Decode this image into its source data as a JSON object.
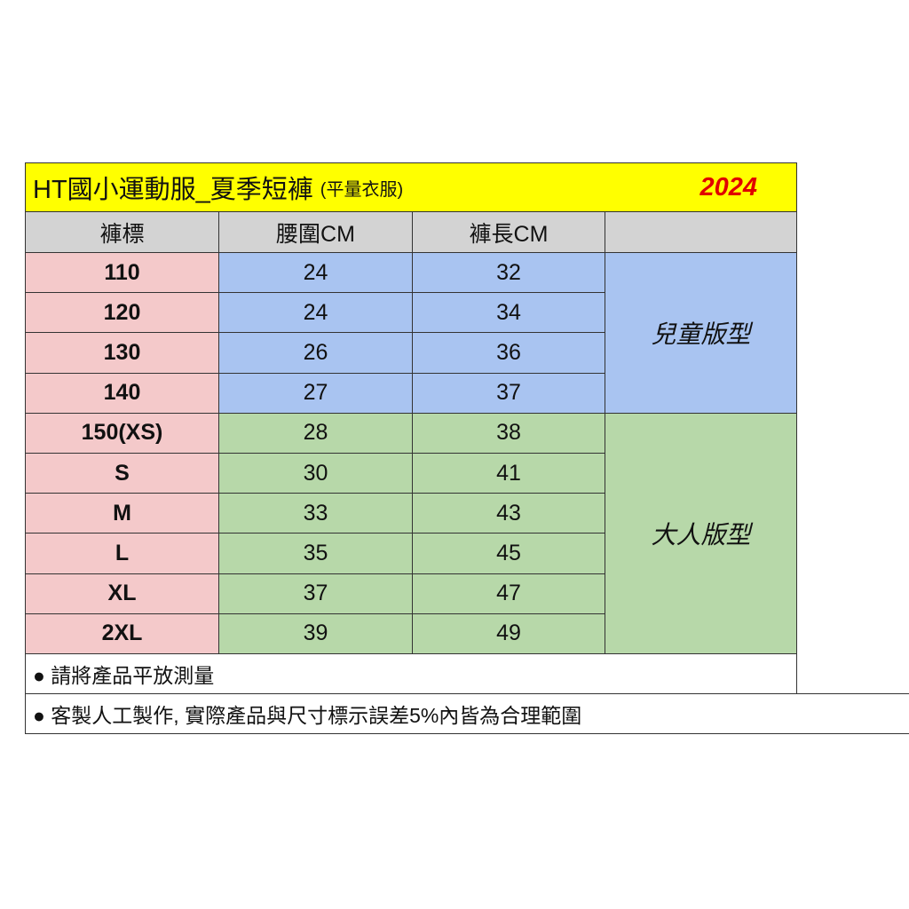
{
  "title": {
    "main": "HT國小運動服_夏季短褲",
    "sub": "(平量衣服)",
    "year": "2024"
  },
  "headers": [
    "褲標",
    "腰圍CM",
    "褲長CM",
    ""
  ],
  "rows": [
    {
      "size": "110",
      "waist": "24",
      "length": "32"
    },
    {
      "size": "120",
      "waist": "24",
      "length": "34"
    },
    {
      "size": "130",
      "waist": "26",
      "length": "36"
    },
    {
      "size": "140",
      "waist": "27",
      "length": "37"
    },
    {
      "size": "150(XS)",
      "waist": "28",
      "length": "38"
    },
    {
      "size": "S",
      "waist": "30",
      "length": "41"
    },
    {
      "size": "M",
      "waist": "33",
      "length": "43"
    },
    {
      "size": "L",
      "waist": "35",
      "length": "45"
    },
    {
      "size": "XL",
      "waist": "37",
      "length": "47"
    },
    {
      "size": "2XL",
      "waist": "39",
      "length": "49"
    }
  ],
  "groups": {
    "kids": "兒童版型",
    "adult": "大人版型"
  },
  "notes": [
    "● 請將產品平放測量",
    "● 客製人工製作, 實際產品與尺寸標示誤差5%內皆為合理範圍"
  ],
  "colors": {
    "title_bg": "#ffff00",
    "year": "#e00000",
    "size_col": "#f4c9ca",
    "kids": "#a9c4f1",
    "adult": "#b7d8a9",
    "header": "#d3d3d3"
  }
}
